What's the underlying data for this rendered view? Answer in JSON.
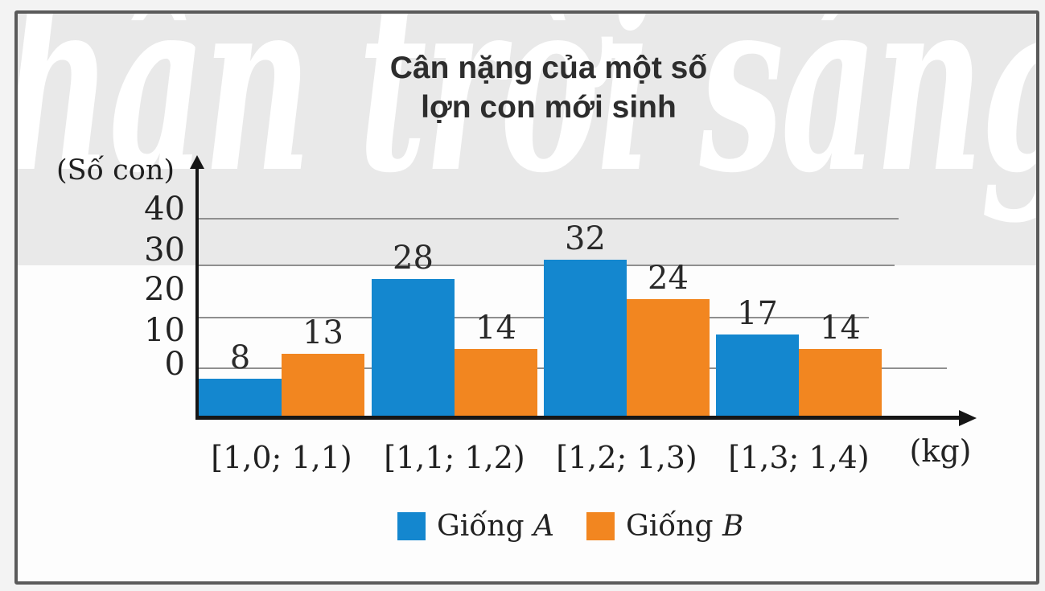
{
  "figure": {
    "watermark_text": "hân trời sáng tạ",
    "border_color": "#5a5a5a",
    "band_color": "#e9e9e9"
  },
  "chart_data": {
    "type": "bar",
    "title": "Cân nặng của một số lợn con mới sinh",
    "title_lines": [
      "Cân nặng của một số",
      "lợn con mới sinh"
    ],
    "y_axis_label": "(Số con)",
    "x_axis_label": "(kg)",
    "categories": [
      "[1,0; 1,1)",
      "[1,1; 1,2)",
      "[1,2; 1,3)",
      "[1,3; 1,4)"
    ],
    "series": [
      {
        "name": "Giống A",
        "color": "#1487cf",
        "values": [
          8,
          28,
          32,
          17
        ]
      },
      {
        "name": "Giống B",
        "color": "#f28620",
        "values": [
          13,
          14,
          24,
          14
        ]
      }
    ],
    "legend": [
      {
        "prefix": "Giống",
        "letter": "A",
        "color": "#1487cf"
      },
      {
        "prefix": "Giống",
        "letter": "B",
        "color": "#f28620"
      }
    ],
    "y_ticks": [
      0,
      10,
      20,
      30,
      40
    ],
    "ylim": [
      0,
      40
    ],
    "grid": true,
    "grid_color": "#8f8f8f",
    "legend_position": "bottom"
  }
}
